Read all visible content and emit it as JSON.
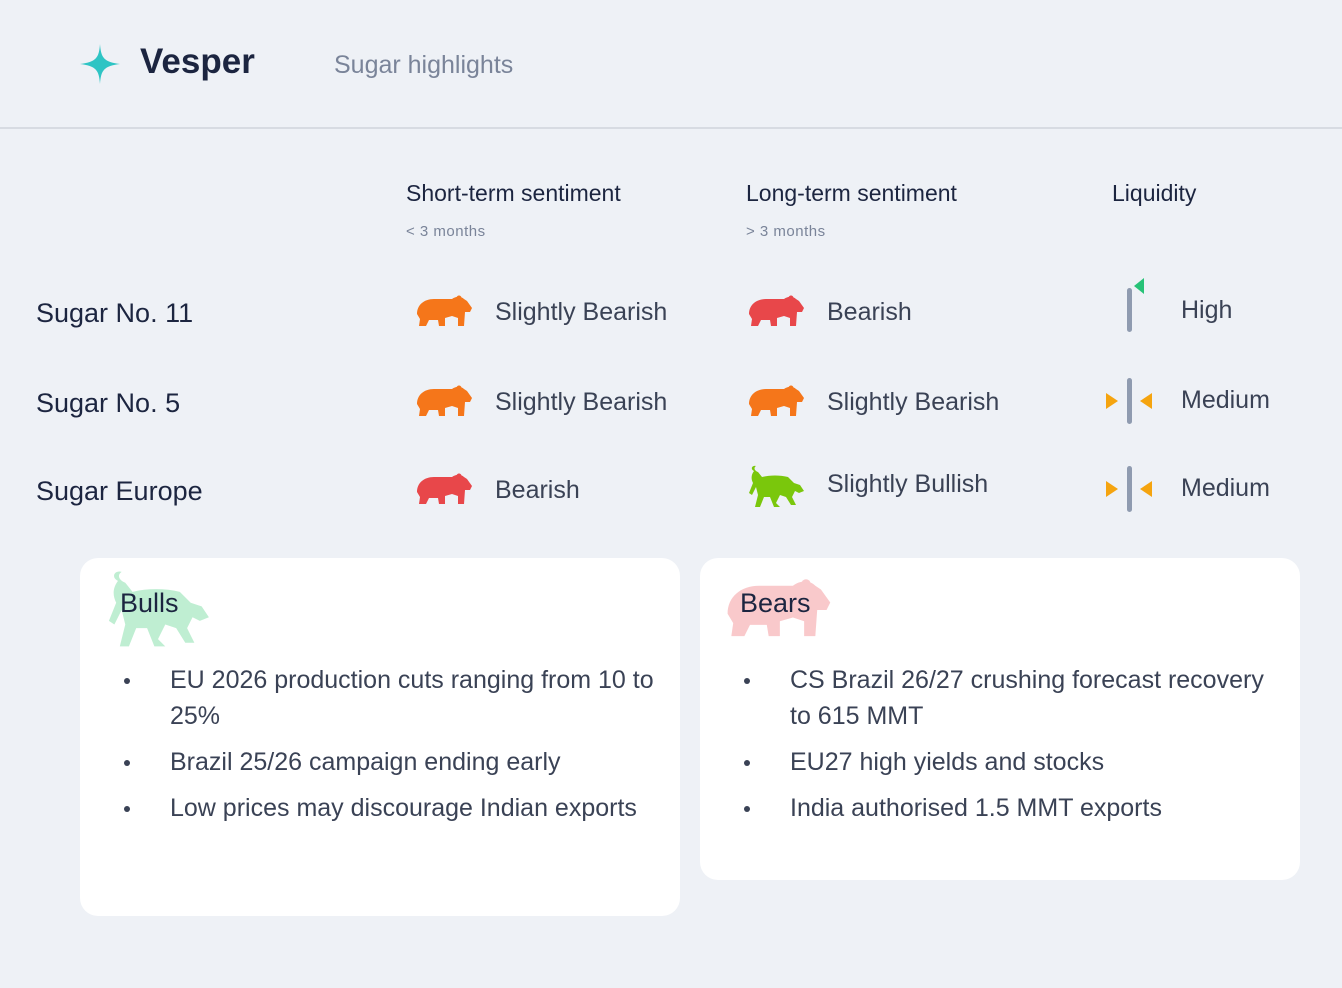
{
  "header": {
    "brand": "Vesper",
    "title": "Sugar highlights"
  },
  "table": {
    "columns": [
      {
        "title": "Short-term sentiment",
        "subtitle": "< 3 months"
      },
      {
        "title": "Long-term sentiment",
        "subtitle": "> 3 months"
      },
      {
        "title": "Liquidity"
      }
    ],
    "rows": [
      {
        "name": "Sugar No. 11",
        "short": "Slightly Bearish",
        "long": "Bearish",
        "liquidity": "High"
      },
      {
        "name": "Sugar No. 5",
        "short": "Slightly Bearish",
        "long": "Slightly Bearish",
        "liquidity": "Medium"
      },
      {
        "name": "Sugar Europe",
        "short": "Bearish",
        "long": "Slightly Bullish",
        "liquidity": "Medium"
      }
    ]
  },
  "bulls": {
    "title": "Bulls",
    "items": [
      "EU 2026 production cuts ranging from 10 to 25%",
      "Brazil 25/26 campaign ending early",
      "Low prices may discourage Indian exports"
    ]
  },
  "bears": {
    "title": "Bears",
    "items": [
      "CS Brazil 26/27 crushing forecast recovery to 615 MMT",
      "EU27 high yields and stocks",
      "India authorised 1.5 MMT exports"
    ]
  }
}
